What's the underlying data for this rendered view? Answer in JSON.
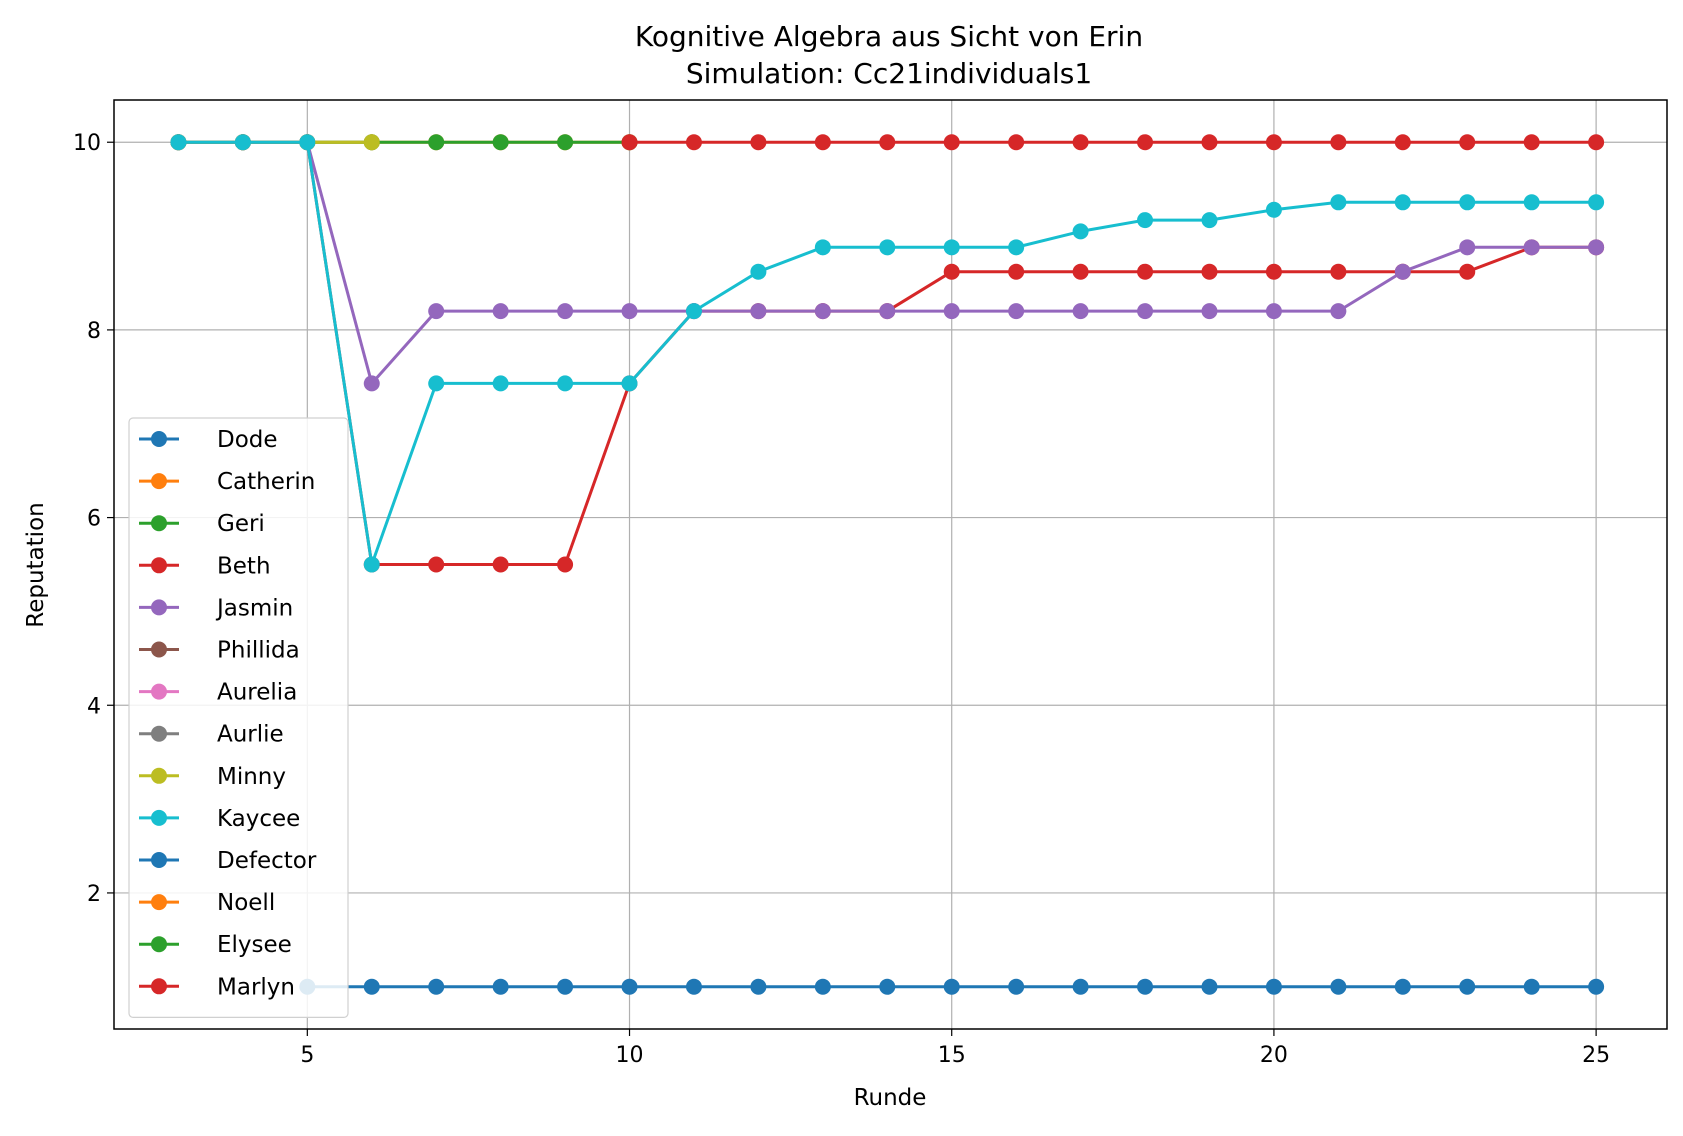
{
  "chart_data": {
    "type": "line",
    "title": "Kognitive Algebra aus Sicht von Erin",
    "subtitle": "Simulation: Cc21individuals1",
    "xlabel": "Runde",
    "ylabel": "Reputation",
    "xlim": [
      2,
      26.1
    ],
    "ylim": [
      0.55,
      10.45
    ],
    "xticks": [
      5,
      10,
      15,
      20,
      25
    ],
    "yticks": [
      2,
      4,
      6,
      8,
      10
    ],
    "grid": true,
    "legend_position": "lower-left",
    "series": [
      {
        "name": "Dode",
        "color": "#1f77b4",
        "x": [
          3,
          4,
          5
        ],
        "y": [
          10,
          10,
          10
        ]
      },
      {
        "name": "Catherin",
        "color": "#ff7f0e",
        "x": [
          3,
          4,
          5,
          6,
          7,
          8,
          9,
          10
        ],
        "y": [
          10,
          10,
          10,
          10,
          10,
          10,
          10,
          10
        ]
      },
      {
        "name": "Geri",
        "color": "#2ca02c",
        "x": [
          3,
          4,
          5,
          6,
          7,
          8,
          9,
          10
        ],
        "y": [
          10,
          10,
          10,
          10,
          10,
          10,
          10,
          10
        ]
      },
      {
        "name": "Beth",
        "color": "#d62728",
        "x": [
          3,
          4,
          5,
          6,
          7,
          8,
          9,
          10,
          11,
          12,
          13,
          14,
          15,
          16,
          17,
          18,
          19,
          20,
          21,
          22,
          23,
          24,
          25
        ],
        "y": [
          10,
          10,
          10,
          5.5,
          5.5,
          5.5,
          5.5,
          7.43,
          8.2,
          8.2,
          8.2,
          8.2,
          8.62,
          8.62,
          8.62,
          8.62,
          8.62,
          8.62,
          8.62,
          8.62,
          8.62,
          8.88,
          8.88
        ]
      },
      {
        "name": "Jasmin",
        "color": "#9467bd",
        "x": [
          3,
          4,
          5,
          6,
          7,
          8,
          9,
          10,
          11,
          12,
          13,
          14,
          15,
          16,
          17,
          18,
          19,
          20,
          21,
          22,
          23,
          24,
          25
        ],
        "y": [
          10,
          10,
          10,
          7.43,
          8.2,
          8.2,
          8.2,
          8.2,
          8.2,
          8.2,
          8.2,
          8.2,
          8.2,
          8.2,
          8.2,
          8.2,
          8.2,
          8.2,
          8.2,
          8.62,
          8.88,
          8.88,
          8.88
        ]
      },
      {
        "name": "Phillida",
        "color": "#8c564b",
        "x": [],
        "y": []
      },
      {
        "name": "Aurelia",
        "color": "#e377c2",
        "x": [],
        "y": []
      },
      {
        "name": "Aurlie",
        "color": "#7f7f7f",
        "x": [],
        "y": []
      },
      {
        "name": "Minny",
        "color": "#bcbd22",
        "x": [
          3,
          4,
          5,
          6
        ],
        "y": [
          10,
          10,
          10,
          10
        ]
      },
      {
        "name": "Kaycee",
        "color": "#17becf",
        "x": [
          3,
          4,
          5,
          6,
          7,
          8,
          9,
          10,
          11,
          12,
          13,
          14,
          15,
          16,
          17,
          18,
          19,
          20,
          21,
          22,
          23,
          24,
          25
        ],
        "y": [
          10,
          10,
          10,
          5.5,
          7.43,
          7.43,
          7.43,
          7.43,
          8.2,
          8.62,
          8.88,
          8.88,
          8.88,
          8.88,
          9.05,
          9.17,
          9.17,
          9.28,
          9.36,
          9.36,
          9.36,
          9.36,
          9.36
        ]
      },
      {
        "name": "Defector",
        "color": "#1f77b4",
        "x": [
          5,
          6,
          7,
          8,
          9,
          10,
          11,
          12,
          13,
          14,
          15,
          16,
          17,
          18,
          19,
          20,
          21,
          22,
          23,
          24,
          25
        ],
        "y": [
          1,
          1,
          1,
          1,
          1,
          1,
          1,
          1,
          1,
          1,
          1,
          1,
          1,
          1,
          1,
          1,
          1,
          1,
          1,
          1,
          1
        ]
      },
      {
        "name": "Noell",
        "color": "#ff7f0e",
        "x": [],
        "y": []
      },
      {
        "name": "Elysee",
        "color": "#2ca02c",
        "x": [],
        "y": []
      },
      {
        "name": "Marlyn",
        "color": "#d62728",
        "x": [
          10,
          11,
          12,
          13,
          14,
          15,
          16,
          17,
          18,
          19,
          20,
          21,
          22,
          23,
          24,
          25
        ],
        "y": [
          10,
          10,
          10,
          10,
          10,
          10,
          10,
          10,
          10,
          10,
          10,
          10,
          10,
          10,
          10,
          10
        ]
      }
    ]
  }
}
